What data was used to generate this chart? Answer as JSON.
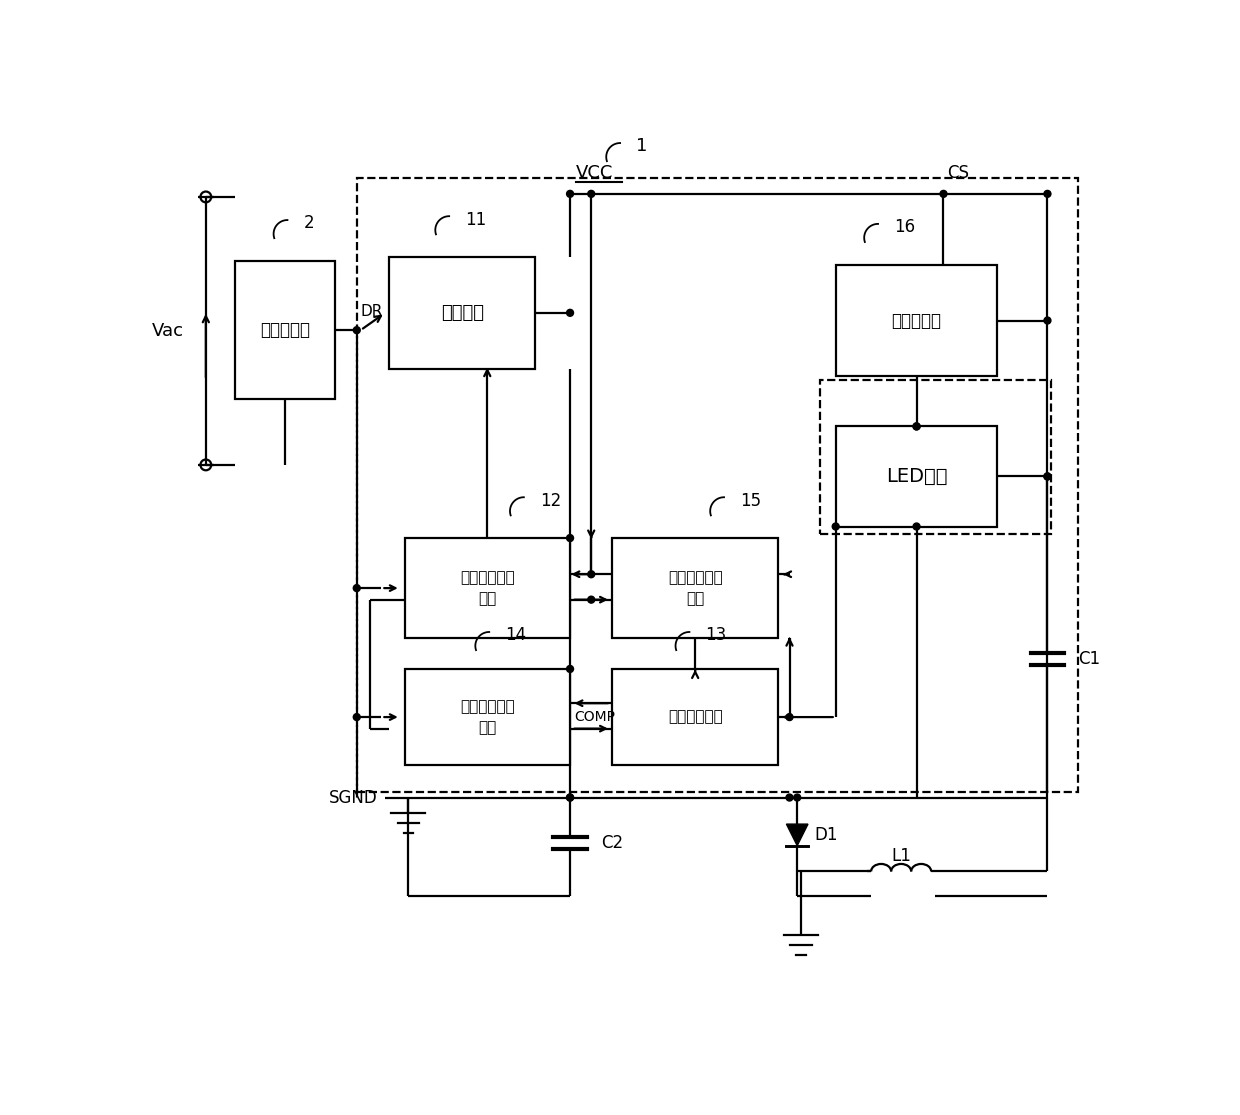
{
  "figsize": [
    12.4,
    11.15
  ],
  "dpi": 100,
  "lw": 1.6,
  "labels": {
    "vac": "Vac",
    "vcc": "VCC",
    "dr": "DR",
    "cs": "CS",
    "comp": "COMP",
    "sgnd": "SGND",
    "ref1": "1",
    "ref2": "2",
    "ref11": "11",
    "ref12": "12",
    "ref13": "13",
    "ref14": "14",
    "ref15": "15",
    "ref16": "16",
    "c1": "C1",
    "c2": "C2",
    "d1": "D1",
    "l1": "L1"
  },
  "blocks": {
    "bridge": {
      "label": "整流桥电路"
    },
    "switch": {
      "label": "开关电路"
    },
    "hengliuyuan": {
      "label": "恒流源电路"
    },
    "led": {
      "label": "LED负载"
    },
    "pulse": {
      "label": "脉冲信号生成\n电路"
    },
    "off_time": {
      "label": "关断时间控制\n电路"
    },
    "on_time": {
      "label": "导通时间控制\n电路"
    },
    "error_amp": {
      "label": "误差放大电路"
    }
  }
}
